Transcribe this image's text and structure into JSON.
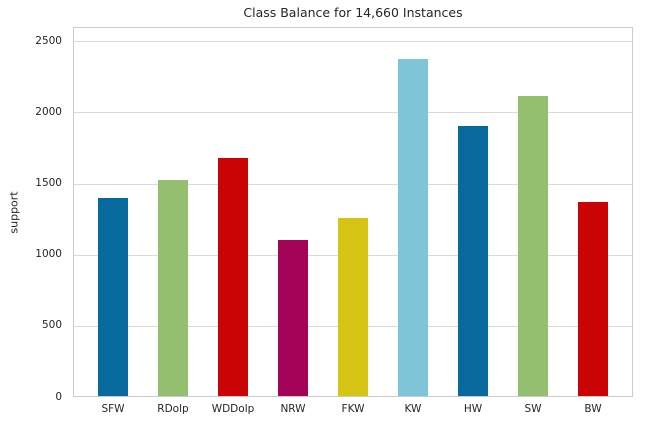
{
  "chart_data": {
    "type": "bar",
    "title": "Class Balance for 14,660 Instances",
    "categories": [
      "SFW",
      "RDolp",
      "WDDolp",
      "NRW",
      "FKW",
      "KW",
      "HW",
      "SW",
      "BW"
    ],
    "values": [
      1395,
      1515,
      1675,
      1095,
      1250,
      2365,
      1895,
      2105,
      1365
    ],
    "bar_colors": [
      "#07699c",
      "#94bf6f",
      "#ca0305",
      "#a30457",
      "#d5c413",
      "#7ec5d8",
      "#07699c",
      "#94bf6f",
      "#ca0305"
    ],
    "total_instances": "14,660",
    "xlabel": "",
    "ylabel": "support",
    "ylim": [
      0,
      2600
    ],
    "yticks": [
      0,
      500,
      1000,
      1500,
      2000,
      2500
    ],
    "grid": true,
    "legend": false,
    "style_colors": {
      "gridline": "#d9d9d9",
      "spine": "#cccccc",
      "text": "#262626",
      "background": "#ffffff"
    }
  }
}
